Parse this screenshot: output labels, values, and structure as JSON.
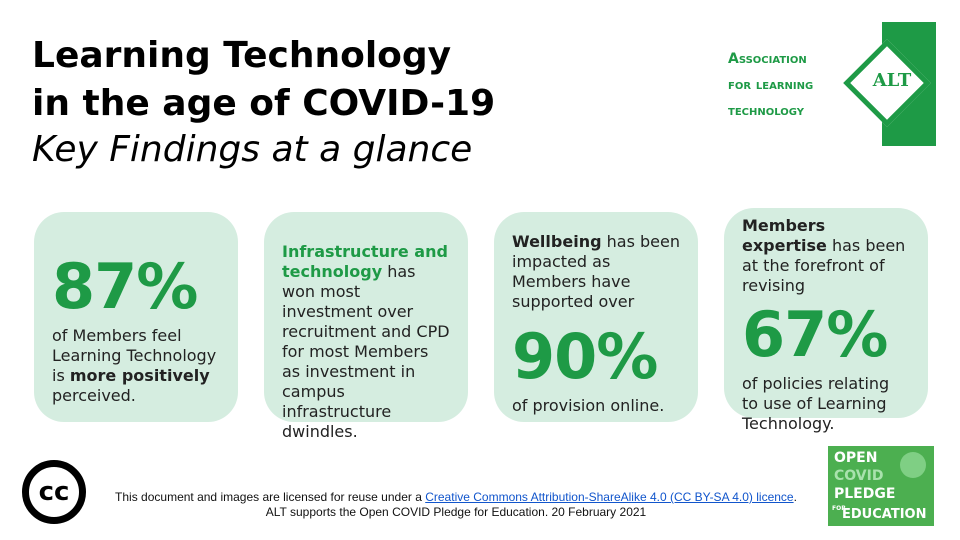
{
  "header": {
    "title_line1": "Learning Technology",
    "title_line2": "in the age of COVID-19",
    "subtitle": "Key Findings at a glance"
  },
  "logo": {
    "line1": "Association",
    "line2": "for learning",
    "line3": "technology",
    "mark": "ALT",
    "color": "#1e9a46"
  },
  "cards": [
    {
      "stat": "87%",
      "text_before": "of Members feel Learning Technology is ",
      "text_bold": "more positively",
      "text_after": " perceived."
    },
    {
      "highlight": "Infrastructure and technology",
      "text": " has won most investment over recruitment and CPD for most Members as investment in campus infrastructure dwindles."
    },
    {
      "lead_bold": "Wellbeing",
      "lead_text": " has been impacted as Members have supported over",
      "stat": "90%",
      "tail": "of provision online."
    },
    {
      "lead_bold": "Members expertise",
      "lead_text": " has been at the forefront of revising",
      "stat": "67%",
      "tail": "of policies relating to use of Learning Technology."
    }
  ],
  "footer": {
    "cc_mark": "cc",
    "line1_prefix": "This document and images are licensed for reuse under a ",
    "license_link": "Creative Commons Attribution-ShareAlike 4.0 (CC BY-SA 4.0) licence",
    "line1_suffix": ".",
    "line2": "ALT supports the Open COVID Pledge for Education. 20 February 2021"
  },
  "pledge": {
    "open": "OPEN",
    "covid": "COVID",
    "pledge": "PLEDGE",
    "for": "FOR",
    "education": "EDUCATION"
  },
  "colors": {
    "accent": "#1e9a46",
    "card_bg": "#d5ede0",
    "pledge_bg": "#4caf50"
  }
}
